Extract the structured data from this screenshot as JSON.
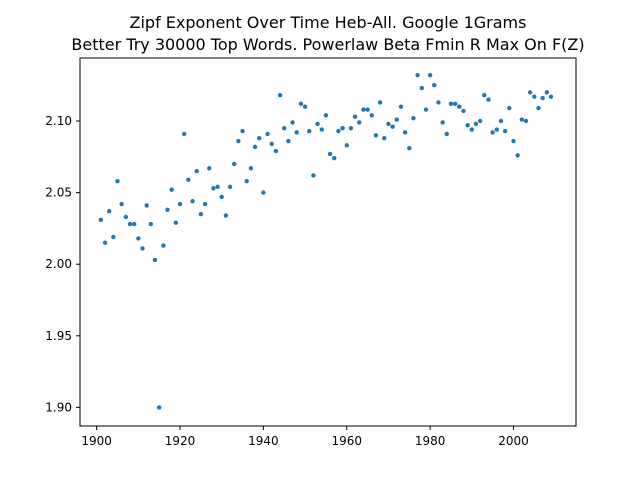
{
  "chart_data": {
    "type": "scatter",
    "title_line1": "Zipf Exponent Over Time Heb-All. Google 1Grams",
    "title_line2": "Better Try 30000 Top Words. Powerlaw Beta Fmin R Max On F(Z)",
    "xlabel": "",
    "ylabel": "",
    "xlim": [
      1896,
      2015
    ],
    "ylim": [
      1.887,
      2.144
    ],
    "xticks": [
      1900,
      1920,
      1940,
      1960,
      1980,
      2000
    ],
    "yticks": [
      1.9,
      1.95,
      2.0,
      2.05,
      2.1
    ],
    "xtick_labels": [
      "1900",
      "1920",
      "1940",
      "1960",
      "1980",
      "2000"
    ],
    "ytick_labels": [
      "1.90",
      "1.95",
      "2.00",
      "2.05",
      "2.10"
    ],
    "grid": false,
    "color": "#1f77b4",
    "points": [
      [
        1901,
        2.031
      ],
      [
        1902,
        2.015
      ],
      [
        1903,
        2.037
      ],
      [
        1904,
        2.019
      ],
      [
        1905,
        2.058
      ],
      [
        1906,
        2.042
      ],
      [
        1907,
        2.033
      ],
      [
        1908,
        2.028
      ],
      [
        1909,
        2.028
      ],
      [
        1910,
        2.018
      ],
      [
        1911,
        2.011
      ],
      [
        1912,
        2.041
      ],
      [
        1913,
        2.028
      ],
      [
        1914,
        2.003
      ],
      [
        1915,
        1.9
      ],
      [
        1916,
        2.013
      ],
      [
        1917,
        2.038
      ],
      [
        1918,
        2.052
      ],
      [
        1919,
        2.029
      ],
      [
        1920,
        2.042
      ],
      [
        1921,
        2.091
      ],
      [
        1922,
        2.059
      ],
      [
        1923,
        2.044
      ],
      [
        1924,
        2.065
      ],
      [
        1925,
        2.035
      ],
      [
        1926,
        2.042
      ],
      [
        1927,
        2.067
      ],
      [
        1928,
        2.053
      ],
      [
        1929,
        2.054
      ],
      [
        1930,
        2.047
      ],
      [
        1931,
        2.034
      ],
      [
        1932,
        2.054
      ],
      [
        1933,
        2.07
      ],
      [
        1934,
        2.086
      ],
      [
        1935,
        2.093
      ],
      [
        1936,
        2.058
      ],
      [
        1937,
        2.067
      ],
      [
        1938,
        2.082
      ],
      [
        1939,
        2.088
      ],
      [
        1940,
        2.05
      ],
      [
        1941,
        2.091
      ],
      [
        1942,
        2.084
      ],
      [
        1943,
        2.079
      ],
      [
        1944,
        2.118
      ],
      [
        1945,
        2.095
      ],
      [
        1946,
        2.086
      ],
      [
        1947,
        2.099
      ],
      [
        1948,
        2.092
      ],
      [
        1949,
        2.112
      ],
      [
        1950,
        2.11
      ],
      [
        1951,
        2.093
      ],
      [
        1952,
        2.062
      ],
      [
        1953,
        2.098
      ],
      [
        1954,
        2.094
      ],
      [
        1955,
        2.104
      ],
      [
        1956,
        2.077
      ],
      [
        1957,
        2.074
      ],
      [
        1958,
        2.093
      ],
      [
        1959,
        2.095
      ],
      [
        1960,
        2.083
      ],
      [
        1961,
        2.095
      ],
      [
        1962,
        2.103
      ],
      [
        1963,
        2.099
      ],
      [
        1964,
        2.108
      ],
      [
        1965,
        2.108
      ],
      [
        1966,
        2.104
      ],
      [
        1967,
        2.09
      ],
      [
        1968,
        2.113
      ],
      [
        1969,
        2.088
      ],
      [
        1970,
        2.098
      ],
      [
        1971,
        2.096
      ],
      [
        1972,
        2.101
      ],
      [
        1973,
        2.11
      ],
      [
        1974,
        2.092
      ],
      [
        1975,
        2.081
      ],
      [
        1976,
        2.102
      ],
      [
        1977,
        2.132
      ],
      [
        1978,
        2.123
      ],
      [
        1979,
        2.108
      ],
      [
        1980,
        2.132
      ],
      [
        1981,
        2.125
      ],
      [
        1982,
        2.113
      ],
      [
        1983,
        2.099
      ],
      [
        1984,
        2.091
      ],
      [
        1985,
        2.112
      ],
      [
        1986,
        2.112
      ],
      [
        1987,
        2.11
      ],
      [
        1988,
        2.107
      ],
      [
        1989,
        2.097
      ],
      [
        1990,
        2.094
      ],
      [
        1991,
        2.098
      ],
      [
        1992,
        2.1
      ],
      [
        1993,
        2.118
      ],
      [
        1994,
        2.115
      ],
      [
        1995,
        2.092
      ],
      [
        1996,
        2.094
      ],
      [
        1997,
        2.1
      ],
      [
        1998,
        2.093
      ],
      [
        1999,
        2.109
      ],
      [
        2000,
        2.086
      ],
      [
        2001,
        2.076
      ],
      [
        2002,
        2.101
      ],
      [
        2003,
        2.1
      ],
      [
        2004,
        2.12
      ],
      [
        2005,
        2.117
      ],
      [
        2006,
        2.109
      ],
      [
        2007,
        2.116
      ],
      [
        2008,
        2.12
      ],
      [
        2009,
        2.117
      ]
    ]
  }
}
